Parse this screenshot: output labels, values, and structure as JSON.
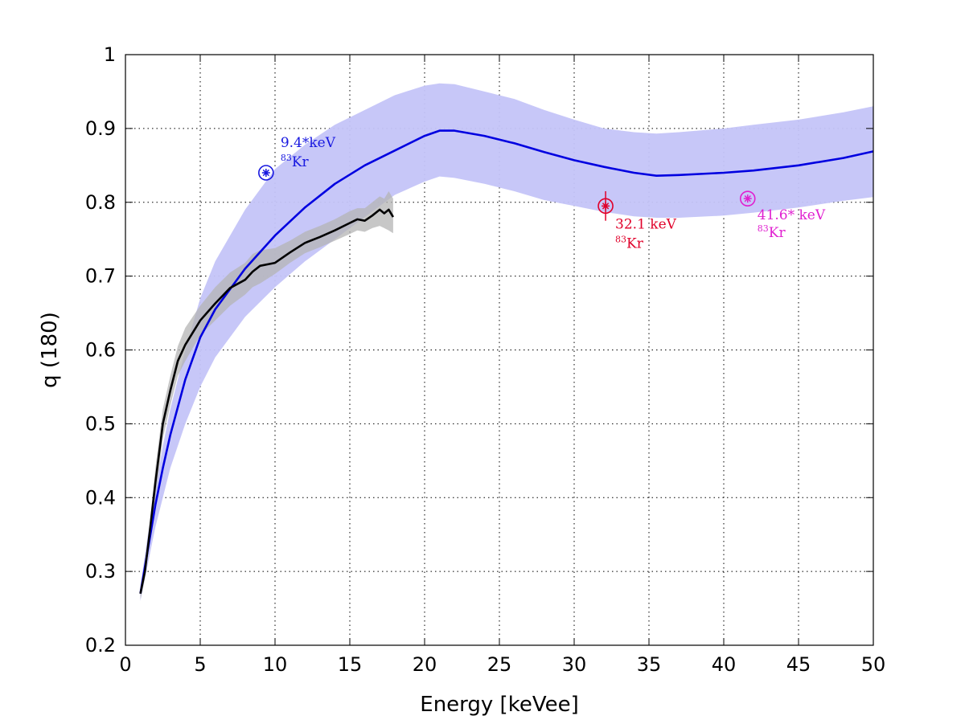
{
  "chart_data": {
    "type": "line",
    "xlabel": "Energy [keVee]",
    "ylabel": "q (180)",
    "xlim": [
      0,
      50
    ],
    "ylim": [
      0.2,
      1.0
    ],
    "xticks": [
      0,
      5,
      10,
      15,
      20,
      25,
      30,
      35,
      40,
      45,
      50
    ],
    "yticks": [
      0.2,
      0.3,
      0.4,
      0.5,
      0.6,
      0.7,
      0.8,
      0.9,
      1.0
    ],
    "xtick_labels": [
      "0",
      "5",
      "10",
      "15",
      "20",
      "25",
      "30",
      "35",
      "40",
      "45",
      "50"
    ],
    "ytick_labels": [
      "0.2",
      "0.3",
      "0.4",
      "0.5",
      "0.6",
      "0.7",
      "0.8",
      "0.9",
      "1"
    ],
    "grid": true,
    "series": [
      {
        "color": "#0000e0",
        "band_color": "#c4c4f8",
        "x": [
          1,
          1.5,
          2,
          2.5,
          3,
          4,
          5,
          6,
          8,
          10,
          12,
          14,
          16,
          18,
          20,
          21,
          22,
          24,
          26,
          28,
          30,
          32,
          34,
          35.5,
          37,
          40,
          42,
          45,
          48,
          50
        ],
        "y": [
          0.27,
          0.33,
          0.39,
          0.44,
          0.485,
          0.56,
          0.617,
          0.655,
          0.71,
          0.755,
          0.793,
          0.825,
          0.85,
          0.87,
          0.89,
          0.897,
          0.897,
          0.89,
          0.88,
          0.868,
          0.857,
          0.848,
          0.84,
          0.836,
          0.837,
          0.84,
          0.843,
          0.85,
          0.86,
          0.869
        ],
        "lower": [
          0.26,
          0.31,
          0.36,
          0.4,
          0.44,
          0.5,
          0.55,
          0.59,
          0.645,
          0.685,
          0.72,
          0.75,
          0.78,
          0.81,
          0.828,
          0.835,
          0.833,
          0.825,
          0.815,
          0.803,
          0.795,
          0.787,
          0.781,
          0.779,
          0.779,
          0.782,
          0.786,
          0.793,
          0.802,
          0.807
        ],
        "upper": [
          0.28,
          0.35,
          0.41,
          0.47,
          0.52,
          0.6,
          0.67,
          0.72,
          0.79,
          0.845,
          0.878,
          0.905,
          0.925,
          0.945,
          0.958,
          0.961,
          0.96,
          0.95,
          0.94,
          0.925,
          0.912,
          0.9,
          0.895,
          0.893,
          0.895,
          0.9,
          0.905,
          0.912,
          0.922,
          0.93
        ]
      },
      {
        "color": "#000000",
        "band_color": "#b4b4b4",
        "x": [
          1,
          1.3,
          1.6,
          2,
          2.5,
          3,
          3.5,
          4,
          5,
          6,
          7,
          8,
          8.5,
          9,
          10,
          11,
          12,
          13,
          14,
          15,
          15.5,
          16,
          16.5,
          17,
          17.3,
          17.6,
          17.9
        ],
        "y": [
          0.27,
          0.3,
          0.35,
          0.42,
          0.5,
          0.545,
          0.585,
          0.607,
          0.64,
          0.663,
          0.684,
          0.695,
          0.706,
          0.714,
          0.718,
          0.732,
          0.745,
          0.753,
          0.762,
          0.772,
          0.777,
          0.775,
          0.782,
          0.79,
          0.785,
          0.79,
          0.78
        ],
        "lower": [
          0.262,
          0.29,
          0.34,
          0.4,
          0.48,
          0.525,
          0.565,
          0.585,
          0.62,
          0.64,
          0.66,
          0.675,
          0.685,
          0.69,
          0.703,
          0.718,
          0.731,
          0.739,
          0.748,
          0.757,
          0.762,
          0.76,
          0.765,
          0.768,
          0.765,
          0.762,
          0.758
        ],
        "upper": [
          0.278,
          0.31,
          0.36,
          0.44,
          0.52,
          0.565,
          0.605,
          0.63,
          0.66,
          0.685,
          0.705,
          0.718,
          0.73,
          0.735,
          0.738,
          0.748,
          0.76,
          0.768,
          0.777,
          0.788,
          0.792,
          0.792,
          0.8,
          0.808,
          0.805,
          0.815,
          0.805
        ]
      }
    ],
    "points": [
      {
        "x": 9.4,
        "y": 0.84,
        "err": 0.0,
        "color": "#1818e0",
        "label": "9.4*keV",
        "isotope": "Kr",
        "mass": "83",
        "label_dx": 18,
        "label_dy": -32,
        "label_dy2": -8
      },
      {
        "x": 32.1,
        "y": 0.795,
        "err": 0.02,
        "color": "#e0002a",
        "label": "32.1 keV",
        "isotope": "Kr",
        "mass": "83",
        "label_dx": 12,
        "label_dy": 28,
        "label_dy2": 52
      },
      {
        "x": 41.6,
        "y": 0.805,
        "err": 0.0,
        "color": "#e020d0",
        "label": "41.6* keV",
        "isotope": "Kr",
        "mass": "83",
        "label_dx": 12,
        "label_dy": 26,
        "label_dy2": 48
      }
    ]
  }
}
